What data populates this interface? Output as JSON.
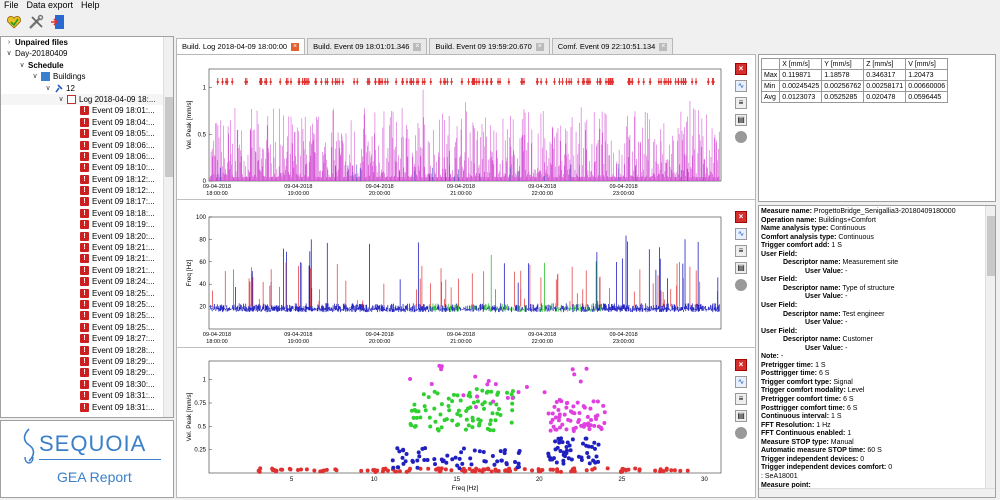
{
  "menu": {
    "items": [
      "File",
      "Data export",
      "Help"
    ]
  },
  "toolbar": {
    "icons": [
      "save-heart-icon",
      "tools-icon",
      "exit-door-icon"
    ]
  },
  "tree": {
    "rows": [
      {
        "level": 0,
        "toggle": ">",
        "icon": "",
        "label": "Unpaired files",
        "bold": true
      },
      {
        "level": 0,
        "toggle": "v",
        "icon": "",
        "label": "Day-20180409",
        "bold": false
      },
      {
        "level": 1,
        "toggle": "v",
        "icon": "",
        "label": "Schedule",
        "bold": true
      },
      {
        "level": 2,
        "toggle": "v",
        "icon": "building",
        "label": "Buildings",
        "bold": false
      },
      {
        "level": 3,
        "toggle": "v",
        "icon": "pin",
        "label": "12",
        "bold": false
      },
      {
        "level": 4,
        "toggle": "v",
        "icon": "doc",
        "label": "Log 2018-04-09 18:...",
        "bold": false
      },
      {
        "level": 5,
        "toggle": "",
        "icon": "event",
        "label": "Event 09 18:01:...",
        "bold": false
      },
      {
        "level": 5,
        "toggle": "",
        "icon": "event",
        "label": "Event 09 18:04:...",
        "bold": false
      },
      {
        "level": 5,
        "toggle": "",
        "icon": "event",
        "label": "Event 09 18:05:...",
        "bold": false
      },
      {
        "level": 5,
        "toggle": "",
        "icon": "event",
        "label": "Event 09 18:06:...",
        "bold": false
      },
      {
        "level": 5,
        "toggle": "",
        "icon": "event",
        "label": "Event 09 18:06:...",
        "bold": false
      },
      {
        "level": 5,
        "toggle": "",
        "icon": "event",
        "label": "Event 09 18:10:...",
        "bold": false
      },
      {
        "level": 5,
        "toggle": "",
        "icon": "event",
        "label": "Event 09 18:12:...",
        "bold": false
      },
      {
        "level": 5,
        "toggle": "",
        "icon": "event",
        "label": "Event 09 18:12:...",
        "bold": false
      },
      {
        "level": 5,
        "toggle": "",
        "icon": "event",
        "label": "Event 09 18:17:...",
        "bold": false
      },
      {
        "level": 5,
        "toggle": "",
        "icon": "event",
        "label": "Event 09 18:18:...",
        "bold": false
      },
      {
        "level": 5,
        "toggle": "",
        "icon": "event",
        "label": "Event 09 18:19:...",
        "bold": false
      },
      {
        "level": 5,
        "toggle": "",
        "icon": "event",
        "label": "Event 09 18:20:...",
        "bold": false
      },
      {
        "level": 5,
        "toggle": "",
        "icon": "event",
        "label": "Event 09 18:21:...",
        "bold": false
      },
      {
        "level": 5,
        "toggle": "",
        "icon": "event",
        "label": "Event 09 18:21:...",
        "bold": false
      },
      {
        "level": 5,
        "toggle": "",
        "icon": "event",
        "label": "Event 09 18:21:...",
        "bold": false
      },
      {
        "level": 5,
        "toggle": "",
        "icon": "event",
        "label": "Event 09 18:24:...",
        "bold": false
      },
      {
        "level": 5,
        "toggle": "",
        "icon": "event",
        "label": "Event 09 18:25:...",
        "bold": false
      },
      {
        "level": 5,
        "toggle": "",
        "icon": "event",
        "label": "Event 09 18:25:...",
        "bold": false
      },
      {
        "level": 5,
        "toggle": "",
        "icon": "event",
        "label": "Event 09 18:25:...",
        "bold": false
      },
      {
        "level": 5,
        "toggle": "",
        "icon": "event",
        "label": "Event 09 18:25:...",
        "bold": false
      },
      {
        "level": 5,
        "toggle": "",
        "icon": "event",
        "label": "Event 09 18:27:...",
        "bold": false
      },
      {
        "level": 5,
        "toggle": "",
        "icon": "event",
        "label": "Event 09 18:28:...",
        "bold": false
      },
      {
        "level": 5,
        "toggle": "",
        "icon": "event",
        "label": "Event 09 18:29:...",
        "bold": false
      },
      {
        "level": 5,
        "toggle": "",
        "icon": "event",
        "label": "Event 09 18:29:...",
        "bold": false
      },
      {
        "level": 5,
        "toggle": "",
        "icon": "event",
        "label": "Event 09 18:30:...",
        "bold": false
      },
      {
        "level": 5,
        "toggle": "",
        "icon": "event",
        "label": "Event 09 18:31:...",
        "bold": false
      },
      {
        "level": 5,
        "toggle": "",
        "icon": "event",
        "label": "Event 09 18:31:...",
        "bold": false
      }
    ]
  },
  "logo": {
    "brand": "SEQUOIA",
    "subtitle": "GEA Report",
    "color": "#3a7fc8"
  },
  "tabs": [
    {
      "label": "Build. Log 2018-04-09 18:00:00",
      "active": true
    },
    {
      "label": "Build. Event 09 18:01:01.346",
      "active": false
    },
    {
      "label": "Build. Event 09 19:59:20.670",
      "active": false
    },
    {
      "label": "Comf. Event 09 22:10:51.134",
      "active": false
    }
  ],
  "plot_buttons": [
    "close-red-icon",
    "chart-icon",
    "export-icon",
    "print-icon",
    "circle-icon"
  ],
  "stats": {
    "headers": [
      "",
      "X [mm/s]",
      "Y [mm/s]",
      "Z [mm/s]",
      "V [mm/s]"
    ],
    "rows": [
      [
        "Max",
        "0.119871",
        "1.18578",
        "0.346317",
        "1.20473"
      ],
      [
        "Min",
        "0.00245425",
        "0.00256762",
        "0.00258171",
        "0.00660006"
      ],
      [
        "Avg",
        "0.0123073",
        "0.0525285",
        "0.020478",
        "0.0596445"
      ]
    ]
  },
  "info": [
    {
      "k": "Measure name:",
      "v": " ProgettoBridge_Senigallia3-20180409180000",
      "indent": 0
    },
    {
      "k": "Operation name:",
      "v": " Buildings+Comfort",
      "indent": 0
    },
    {
      "k": "Name analysis type:",
      "v": " Continuous",
      "indent": 0
    },
    {
      "k": "Comfort analysis type:",
      "v": " Continuous",
      "indent": 0
    },
    {
      "k": "Trigger comfort add:",
      "v": " 1 S",
      "indent": 0
    },
    {
      "k": "User Field:",
      "v": "",
      "indent": 0
    },
    {
      "k": "Descriptor name:",
      "v": " Measurement site",
      "indent": 1
    },
    {
      "k": "User Value:",
      "v": " -",
      "indent": 2
    },
    {
      "k": "User Field:",
      "v": "",
      "indent": 0
    },
    {
      "k": "Descriptor name:",
      "v": " Type of structure",
      "indent": 1
    },
    {
      "k": "User Value:",
      "v": " -",
      "indent": 2
    },
    {
      "k": "User Field:",
      "v": "",
      "indent": 0
    },
    {
      "k": "Descriptor name:",
      "v": " Test engineer",
      "indent": 1
    },
    {
      "k": "User Value:",
      "v": " -",
      "indent": 2
    },
    {
      "k": "User Field:",
      "v": "",
      "indent": 0
    },
    {
      "k": "Descriptor name:",
      "v": " Customer",
      "indent": 1
    },
    {
      "k": "User Value:",
      "v": " -",
      "indent": 2
    },
    {
      "k": "Note:",
      "v": " -",
      "indent": 0
    },
    {
      "k": "Pretrigger time:",
      "v": " 1 S",
      "indent": 0
    },
    {
      "k": "Posttrigger time:",
      "v": " 6 S",
      "indent": 0
    },
    {
      "k": "Trigger comfort type:",
      "v": " Signal",
      "indent": 0
    },
    {
      "k": "Trigger comfort modality:",
      "v": " Level",
      "indent": 0
    },
    {
      "k": "Pretrigger comfort time:",
      "v": " 6 S",
      "indent": 0
    },
    {
      "k": "Posttrigger comfort time:",
      "v": " 6 S",
      "indent": 0
    },
    {
      "k": "Continuous interval:",
      "v": " 1 S",
      "indent": 0
    },
    {
      "k": "FFT Resolution:",
      "v": " 1 Hz",
      "indent": 0
    },
    {
      "k": "FFT Continuous enabled:",
      "v": " 1",
      "indent": 0
    },
    {
      "k": "Measure STOP type:",
      "v": " Manual",
      "indent": 0
    },
    {
      "k": "Automatic measure STOP time:",
      "v": " 60 S",
      "indent": 0
    },
    {
      "k": "Trigger independent devices:",
      "v": " 0",
      "indent": 0
    },
    {
      "k": "Trigger independent devices comfort:",
      "v": " 0",
      "indent": 0
    },
    {
      "k": "",
      "v": ": SeA18001",
      "indent": 0
    },
    {
      "k": "Measure point:",
      "v": "",
      "indent": 0
    }
  ],
  "chart_data": [
    {
      "type": "line",
      "ylabel": "Vel. Peak [mm/s]",
      "yticks": [
        "0",
        "0.5",
        "1"
      ],
      "ylim": [
        0,
        1.2
      ],
      "xticks": [
        {
          "d": "09-04-2018",
          "t": "18:00:00"
        },
        {
          "d": "09-04-2018",
          "t": "19:00:00"
        },
        {
          "d": "09-04-2018",
          "t": "20:00:00"
        },
        {
          "d": "09-04-2018",
          "t": "21:00:00"
        },
        {
          "d": "09-04-2018",
          "t": "22:00:00"
        },
        {
          "d": "09-04-2018",
          "t": "23:00:00"
        }
      ],
      "series_colors": [
        "#d040d0",
        "#e03030",
        "#5050c0"
      ]
    },
    {
      "type": "line",
      "ylabel": "Freq [Hz]",
      "yticks": [
        "20",
        "40",
        "60",
        "80",
        "100"
      ],
      "ylim": [
        0,
        100
      ],
      "xticks": [
        {
          "d": "09-04-2018",
          "t": "18:00:00"
        },
        {
          "d": "09-04-2018",
          "t": "19:00:00"
        },
        {
          "d": "09-04-2018",
          "t": "20:00:00"
        },
        {
          "d": "09-04-2018",
          "t": "21:00:00"
        },
        {
          "d": "09-04-2018",
          "t": "22:00:00"
        },
        {
          "d": "09-04-2018",
          "t": "23:00:00"
        }
      ],
      "series_colors": [
        "#2020c0",
        "#e03030",
        "#30c030"
      ]
    },
    {
      "type": "scatter",
      "ylabel": "Vel. Peak [mm/s]",
      "xlabel": "Freq [Hz]",
      "yticks": [
        "0.25",
        "0.5",
        "0.75",
        "1"
      ],
      "ylim": [
        0,
        1.2
      ],
      "xticks": [
        "5",
        "10",
        "15",
        "20",
        "25",
        "30"
      ],
      "xlim": [
        0,
        31
      ],
      "series_colors": [
        "#e03030",
        "#2020c0",
        "#30d030",
        "#e040e0"
      ]
    }
  ]
}
